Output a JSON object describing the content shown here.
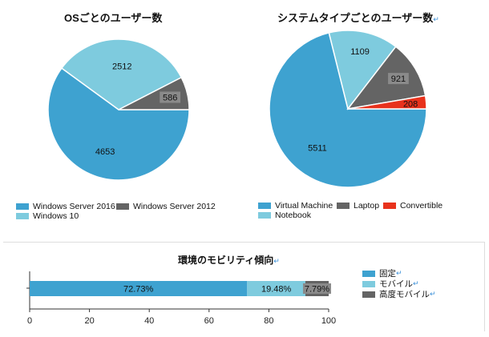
{
  "chart_data": [
    {
      "type": "pie",
      "title": "OSごとのユーザー数",
      "categories": [
        "Windows Server 2016",
        "Windows 10",
        "Windows Server 2012"
      ],
      "values": [
        4653,
        2512,
        586
      ],
      "colors": [
        "#3ea2d0",
        "#7ecbde",
        "#646464"
      ],
      "legend": "bottom"
    },
    {
      "type": "pie",
      "title": "システムタイプごとのユーザー数",
      "title_mark": "↵",
      "categories": [
        "Virtual Machine",
        "Notebook",
        "Laptop",
        "Convertible"
      ],
      "values": [
        5511,
        1109,
        921,
        208
      ],
      "colors": [
        "#3ea2d0",
        "#7ecbde",
        "#646464",
        "#e8321c"
      ],
      "legend": "bottom"
    },
    {
      "type": "bar",
      "orientation": "horizontal",
      "stacked": true,
      "title": "環境のモビリティ傾向",
      "title_mark": "↵",
      "series": [
        {
          "name": "固定",
          "mark": "↵",
          "value": 72.73,
          "label": "72.73%",
          "color": "#3ea2d0"
        },
        {
          "name": "モバイル",
          "mark": "↵",
          "value": 19.48,
          "label": "19.48%",
          "color": "#7ecbde"
        },
        {
          "name": "高度モバイル",
          "mark": "↵",
          "value": 7.79,
          "label": "7.79%",
          "color": "#646464"
        }
      ],
      "xlim": [
        0,
        100
      ],
      "xticks": [
        "0",
        "20",
        "40",
        "60",
        "80",
        "100"
      ],
      "legend": "right"
    }
  ]
}
